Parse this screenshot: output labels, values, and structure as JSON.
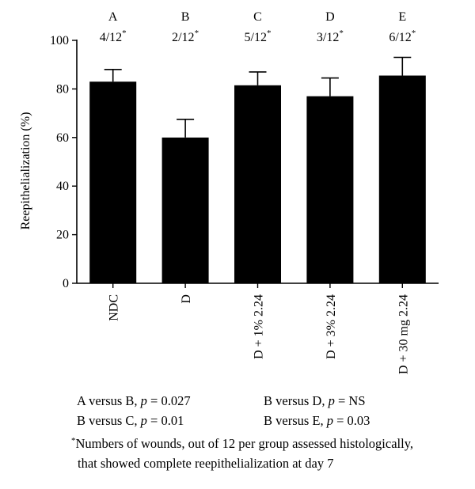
{
  "chart_data": {
    "type": "bar",
    "categories": [
      "NDC",
      "D",
      "D + 1% 2.24",
      "D + 3% 2.24",
      "D + 30 mg 2.24"
    ],
    "values": [
      83,
      60,
      81.5,
      77,
      85.5
    ],
    "errors": [
      5,
      7.5,
      5.5,
      7.5,
      7.5
    ],
    "group_letters": [
      "A",
      "B",
      "C",
      "D",
      "E"
    ],
    "group_counts": [
      "4/12",
      "2/12",
      "5/12",
      "3/12",
      "6/12"
    ],
    "count_marker": "*",
    "ylabel": "Reepithelialization (%)",
    "ylim": [
      0,
      100
    ],
    "yticks": [
      0,
      20,
      40,
      60,
      80,
      100
    ],
    "bar_color": "#000000"
  },
  "comparisons": [
    {
      "pair": "A versus B,",
      "p_symbol": "p",
      "eq": " = 0.027"
    },
    {
      "pair": "B versus D,",
      "p_symbol": "p",
      "eq": " = NS"
    },
    {
      "pair": "B versus C,",
      "p_symbol": "p",
      "eq": " = 0.01"
    },
    {
      "pair": "B versus E,",
      "p_symbol": "p",
      "eq": " = 0.03"
    }
  ],
  "footnote": {
    "marker": "*",
    "line1": "Numbers of wounds, out of 12 per group assessed histologically,",
    "line2": "that showed complete reepithelialization at day 7"
  }
}
